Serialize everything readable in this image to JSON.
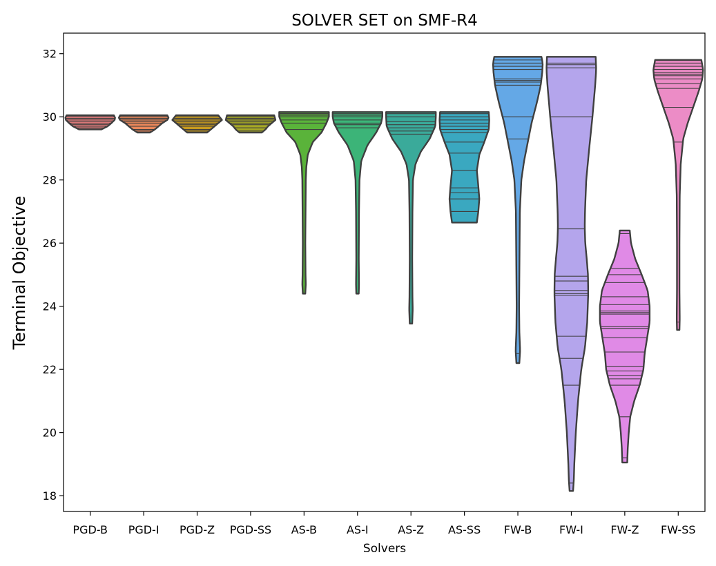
{
  "chart_data": {
    "type": "violin",
    "title": "SOLVER SET on SMF-R4",
    "xlabel": "Solvers",
    "ylabel": "Terminal Objective",
    "ylim": [
      17.5,
      32.65
    ],
    "yticks": [
      18,
      20,
      22,
      24,
      26,
      28,
      30,
      32
    ],
    "grid": false,
    "categories": [
      "PGD-B",
      "PGD-I",
      "PGD-Z",
      "PGD-SS",
      "AS-B",
      "AS-I",
      "AS-Z",
      "AS-SS",
      "FW-B",
      "FW-I",
      "FW-Z",
      "FW-SS"
    ],
    "colors": [
      "#f08080",
      "#e8875a",
      "#c79a1e",
      "#a6a825",
      "#5ab33a",
      "#3cb478",
      "#3aaa9a",
      "#3aa8c0",
      "#64a8e6",
      "#b4a5ec",
      "#e08ae6",
      "#ec8cc6"
    ],
    "series": [
      {
        "name": "PGD-B",
        "min": 29.6,
        "max": 30.05,
        "values": [
          29.65,
          29.7,
          29.75,
          29.8,
          29.85,
          29.9,
          29.95,
          30.0,
          30.0,
          30.05
        ]
      },
      {
        "name": "PGD-I",
        "min": 29.5,
        "max": 30.05,
        "values": [
          29.55,
          29.6,
          29.7,
          29.8,
          29.85,
          29.9,
          29.95,
          30.0,
          30.0,
          30.05
        ]
      },
      {
        "name": "PGD-Z",
        "min": 29.5,
        "max": 30.05,
        "values": [
          29.55,
          29.6,
          29.7,
          29.75,
          29.8,
          29.85,
          29.9,
          29.95,
          30.0,
          30.05
        ]
      },
      {
        "name": "PGD-SS",
        "min": 29.5,
        "max": 30.05,
        "values": [
          29.55,
          29.65,
          29.75,
          29.8,
          29.85,
          29.9,
          29.95,
          30.0,
          30.0,
          30.05
        ]
      },
      {
        "name": "AS-B",
        "min": 24.4,
        "max": 30.15,
        "values": [
          24.4,
          29.6,
          29.8,
          29.9,
          30.0,
          30.05,
          30.1,
          30.1,
          30.15
        ]
      },
      {
        "name": "AS-I",
        "min": 24.4,
        "max": 30.15,
        "values": [
          24.4,
          29.65,
          29.75,
          29.8,
          29.9,
          30.0,
          30.05,
          30.1,
          30.15
        ]
      },
      {
        "name": "AS-Z",
        "min": 23.45,
        "max": 30.15,
        "values": [
          23.45,
          29.45,
          29.55,
          29.65,
          29.75,
          29.85,
          30.0,
          30.1,
          30.15
        ]
      },
      {
        "name": "AS-SS",
        "min": 26.65,
        "max": 30.15,
        "values": [
          27.0,
          27.4,
          27.6,
          27.75,
          28.3,
          28.85,
          29.2,
          29.5,
          29.6,
          29.7,
          29.8,
          29.9,
          30.0,
          30.1
        ]
      },
      {
        "name": "FW-B",
        "min": 22.2,
        "max": 31.9,
        "values": [
          22.5,
          29.3,
          30.0,
          31.0,
          31.1,
          31.15,
          31.2,
          31.5,
          31.6,
          31.7,
          31.8,
          31.9
        ]
      },
      {
        "name": "FW-I",
        "min": 18.15,
        "max": 31.9,
        "values": [
          18.4,
          21.5,
          22.35,
          23.05,
          24.35,
          24.4,
          24.5,
          24.8,
          24.95,
          26.45,
          30.0,
          31.55,
          31.65,
          31.7
        ]
      },
      {
        "name": "FW-Z",
        "min": 19.05,
        "max": 26.4,
        "values": [
          19.2,
          20.5,
          21.5,
          21.7,
          21.8,
          21.95,
          22.1,
          22.55,
          23.0,
          23.3,
          23.35,
          23.75,
          23.8,
          23.85,
          24.05,
          24.3,
          24.75,
          25.0,
          25.2,
          26.3
        ]
      },
      {
        "name": "FW-SS",
        "min": 23.25,
        "max": 31.8,
        "values": [
          23.5,
          29.2,
          30.3,
          30.9,
          31.05,
          31.2,
          31.3,
          31.35,
          31.4,
          31.5,
          31.6,
          31.7,
          31.8
        ]
      }
    ],
    "shapes": [
      {
        "profile": [
          [
            29.6,
            0.45
          ],
          [
            29.7,
            0.7
          ],
          [
            29.8,
            0.85
          ],
          [
            29.9,
            0.98
          ],
          [
            29.97,
            1.0
          ],
          [
            30.05,
            0.95
          ]
        ]
      },
      {
        "profile": [
          [
            29.5,
            0.25
          ],
          [
            29.6,
            0.45
          ],
          [
            29.7,
            0.6
          ],
          [
            29.8,
            0.75
          ],
          [
            29.9,
            0.95
          ],
          [
            29.97,
            1.0
          ],
          [
            30.05,
            0.95
          ]
        ]
      },
      {
        "profile": [
          [
            29.5,
            0.4
          ],
          [
            29.6,
            0.55
          ],
          [
            29.7,
            0.7
          ],
          [
            29.8,
            0.85
          ],
          [
            29.9,
            1.0
          ],
          [
            30.05,
            0.85
          ]
        ]
      },
      {
        "profile": [
          [
            29.5,
            0.45
          ],
          [
            29.6,
            0.6
          ],
          [
            29.7,
            0.7
          ],
          [
            29.8,
            0.85
          ],
          [
            29.9,
            1.0
          ],
          [
            30.05,
            0.95
          ]
        ]
      },
      {
        "profile": [
          [
            24.4,
            0.05
          ],
          [
            24.7,
            0.07
          ],
          [
            25.0,
            0.06
          ],
          [
            26.0,
            0.05
          ],
          [
            27.0,
            0.06
          ],
          [
            28.0,
            0.07
          ],
          [
            28.4,
            0.09
          ],
          [
            28.8,
            0.15
          ],
          [
            29.2,
            0.35
          ],
          [
            29.5,
            0.7
          ],
          [
            29.8,
            0.9
          ],
          [
            30.0,
            1.0
          ],
          [
            30.15,
            1.0
          ]
        ]
      },
      {
        "profile": [
          [
            24.4,
            0.05
          ],
          [
            24.7,
            0.06
          ],
          [
            25.5,
            0.05
          ],
          [
            27.0,
            0.06
          ],
          [
            28.0,
            0.08
          ],
          [
            28.6,
            0.15
          ],
          [
            29.1,
            0.4
          ],
          [
            29.5,
            0.75
          ],
          [
            29.8,
            0.95
          ],
          [
            30.0,
            1.0
          ],
          [
            30.15,
            1.0
          ]
        ]
      },
      {
        "profile": [
          [
            23.45,
            0.05
          ],
          [
            23.9,
            0.07
          ],
          [
            24.3,
            0.06
          ],
          [
            25.5,
            0.05
          ],
          [
            27.0,
            0.06
          ],
          [
            28.0,
            0.08
          ],
          [
            28.5,
            0.18
          ],
          [
            28.9,
            0.4
          ],
          [
            29.3,
            0.75
          ],
          [
            29.7,
            0.98
          ],
          [
            30.0,
            1.0
          ],
          [
            30.15,
            1.0
          ]
        ]
      },
      {
        "profile": [
          [
            26.65,
            0.5
          ],
          [
            27.0,
            0.56
          ],
          [
            27.4,
            0.6
          ],
          [
            27.8,
            0.56
          ],
          [
            28.3,
            0.5
          ],
          [
            28.8,
            0.6
          ],
          [
            29.2,
            0.8
          ],
          [
            29.6,
            0.98
          ],
          [
            29.9,
            1.0
          ],
          [
            30.15,
            0.98
          ]
        ]
      },
      {
        "profile": [
          [
            22.2,
            0.06
          ],
          [
            22.6,
            0.09
          ],
          [
            23.2,
            0.06
          ],
          [
            24.0,
            0.05
          ],
          [
            25.0,
            0.06
          ],
          [
            26.0,
            0.07
          ],
          [
            27.0,
            0.08
          ],
          [
            28.0,
            0.14
          ],
          [
            28.6,
            0.25
          ],
          [
            29.2,
            0.4
          ],
          [
            29.8,
            0.55
          ],
          [
            30.5,
            0.78
          ],
          [
            31.0,
            0.92
          ],
          [
            31.4,
            0.98
          ],
          [
            31.7,
            1.0
          ],
          [
            31.9,
            0.95
          ]
        ]
      },
      {
        "profile": [
          [
            18.15,
            0.07
          ],
          [
            18.5,
            0.1
          ],
          [
            19.0,
            0.12
          ],
          [
            20.0,
            0.18
          ],
          [
            21.0,
            0.27
          ],
          [
            22.0,
            0.4
          ],
          [
            22.7,
            0.55
          ],
          [
            23.5,
            0.64
          ],
          [
            24.4,
            0.68
          ],
          [
            25.0,
            0.67
          ],
          [
            25.5,
            0.62
          ],
          [
            26.0,
            0.56
          ],
          [
            26.5,
            0.54
          ],
          [
            27.0,
            0.55
          ],
          [
            28.0,
            0.6
          ],
          [
            29.0,
            0.72
          ],
          [
            30.0,
            0.85
          ],
          [
            31.0,
            0.96
          ],
          [
            31.5,
            1.0
          ],
          [
            31.9,
            0.98
          ]
        ]
      },
      {
        "profile": [
          [
            19.05,
            0.1
          ],
          [
            19.5,
            0.12
          ],
          [
            20.0,
            0.16
          ],
          [
            20.5,
            0.22
          ],
          [
            21.0,
            0.38
          ],
          [
            21.5,
            0.6
          ],
          [
            22.0,
            0.75
          ],
          [
            22.5,
            0.8
          ],
          [
            23.0,
            0.9
          ],
          [
            23.5,
            1.0
          ],
          [
            24.0,
            1.0
          ],
          [
            24.5,
            0.92
          ],
          [
            25.0,
            0.68
          ],
          [
            25.5,
            0.42
          ],
          [
            26.0,
            0.25
          ],
          [
            26.4,
            0.2
          ]
        ]
      },
      {
        "profile": [
          [
            23.25,
            0.05
          ],
          [
            23.6,
            0.06
          ],
          [
            24.5,
            0.05
          ],
          [
            26.0,
            0.05
          ],
          [
            27.5,
            0.06
          ],
          [
            28.5,
            0.1
          ],
          [
            29.3,
            0.2
          ],
          [
            29.8,
            0.38
          ],
          [
            30.3,
            0.6
          ],
          [
            30.8,
            0.82
          ],
          [
            31.2,
            0.97
          ],
          [
            31.5,
            1.0
          ],
          [
            31.8,
            0.93
          ]
        ]
      }
    ]
  }
}
